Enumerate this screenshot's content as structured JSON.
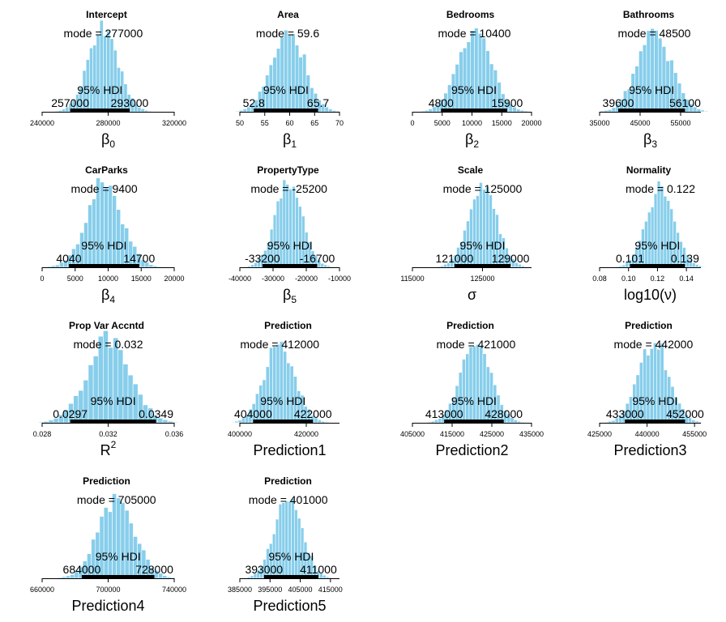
{
  "chart_data": [
    {
      "type": "bar",
      "title": "Intercept",
      "mode": 277000,
      "mode_label": "mode = 277000",
      "hdi_label": "95% HDI",
      "hdi_low": 257000,
      "hdi_high": 293000,
      "hdi_low_label": "257000",
      "hdi_high_label": "293000",
      "xlim": [
        240000,
        320000
      ],
      "ticks": [
        240000,
        280000,
        320000
      ],
      "tick_labels": [
        "240000",
        "280000",
        "320000"
      ],
      "xlabel": "β",
      "xlabel_sub": "0",
      "xlabel_sup": ""
    },
    {
      "type": "bar",
      "title": "Area",
      "mode": 59.6,
      "mode_label": "mode = 59.6",
      "hdi_label": "95% HDI",
      "hdi_low": 52.8,
      "hdi_high": 65.7,
      "hdi_low_label": "52.8",
      "hdi_high_label": "65.7",
      "xlim": [
        50,
        70
      ],
      "ticks": [
        50,
        55,
        60,
        65,
        70
      ],
      "tick_labels": [
        "50",
        "55",
        "60",
        "65",
        "70"
      ],
      "xlabel": "β",
      "xlabel_sub": "1",
      "xlabel_sup": ""
    },
    {
      "type": "bar",
      "title": "Bedrooms",
      "mode": 10400,
      "mode_label": "mode = 10400",
      "hdi_label": "95% HDI",
      "hdi_low": 4800,
      "hdi_high": 15900,
      "hdi_low_label": "4800",
      "hdi_high_label": "15900",
      "xlim": [
        0,
        20000
      ],
      "ticks": [
        0,
        5000,
        10000,
        15000,
        20000
      ],
      "tick_labels": [
        "0",
        "5000",
        "10000",
        "15000",
        "20000"
      ],
      "xlabel": "β",
      "xlabel_sub": "2",
      "xlabel_sup": ""
    },
    {
      "type": "bar",
      "title": "Bathrooms",
      "mode": 48500,
      "mode_label": "mode = 48500",
      "hdi_label": "95% HDI",
      "hdi_low": 39600,
      "hdi_high": 56100,
      "hdi_low_label": "39600",
      "hdi_high_label": "56100",
      "xlim": [
        35000,
        60000
      ],
      "ticks": [
        35000,
        45000,
        55000
      ],
      "tick_labels": [
        "35000",
        "45000",
        "55000"
      ],
      "xlabel": "β",
      "xlabel_sub": "3",
      "xlabel_sup": ""
    },
    {
      "type": "bar",
      "title": "CarParks",
      "mode": 9400,
      "mode_label": "mode = 9400",
      "hdi_label": "95% HDI",
      "hdi_low": 4040,
      "hdi_high": 14700,
      "hdi_low_label": "4040",
      "hdi_high_label": "14700",
      "xlim": [
        0,
        20000
      ],
      "ticks": [
        0,
        5000,
        10000,
        15000,
        20000
      ],
      "tick_labels": [
        "0",
        "5000",
        "10000",
        "15000",
        "20000"
      ],
      "xlabel": "β",
      "xlabel_sub": "4",
      "xlabel_sup": ""
    },
    {
      "type": "bar",
      "title": "PropertyType",
      "mode": -25200,
      "mode_label": "mode = -25200",
      "hdi_label": "95% HDI",
      "hdi_low": -33200,
      "hdi_high": -16700,
      "hdi_low_label": "-33200",
      "hdi_high_label": "-16700",
      "xlim": [
        -40000,
        -10000
      ],
      "ticks": [
        -40000,
        -30000,
        -20000,
        -10000
      ],
      "tick_labels": [
        "-40000",
        "-30000",
        "-20000",
        "-10000"
      ],
      "xlabel": "β",
      "xlabel_sub": "5",
      "xlabel_sup": ""
    },
    {
      "type": "bar",
      "title": "Scale",
      "mode": 125000,
      "mode_label": "mode = 125000",
      "hdi_label": "95% HDI",
      "hdi_low": 121000,
      "hdi_high": 129000,
      "hdi_low_label": "121000",
      "hdi_high_label": "129000",
      "xlim": [
        115000,
        132000
      ],
      "ticks": [
        115000,
        125000
      ],
      "tick_labels": [
        "115000",
        "125000"
      ],
      "xlabel": "σ",
      "xlabel_sub": "",
      "xlabel_sup": ""
    },
    {
      "type": "bar",
      "title": "Normality",
      "mode": 0.122,
      "mode_label": "mode = 0.122",
      "hdi_label": "95% HDI",
      "hdi_low": 0.101,
      "hdi_high": 0.139,
      "hdi_low_label": "0.101",
      "hdi_high_label": "0.139",
      "xlim": [
        0.08,
        0.15
      ],
      "ticks": [
        0.08,
        0.1,
        0.12,
        0.14
      ],
      "tick_labels": [
        "0.08",
        "0.10",
        "0.12",
        "0.14"
      ],
      "xlabel": "log10(ν)",
      "xlabel_sub": "",
      "xlabel_sup": ""
    },
    {
      "type": "bar",
      "title": "Prop Var Accntd",
      "mode": 0.032,
      "mode_label": "mode = 0.032",
      "hdi_label": "95% HDI",
      "hdi_low": 0.0297,
      "hdi_high": 0.0349,
      "hdi_low_label": "0.0297",
      "hdi_high_label": "0.0349",
      "xlim": [
        0.028,
        0.036
      ],
      "ticks": [
        0.028,
        0.032,
        0.036
      ],
      "tick_labels": [
        "0.028",
        "0.032",
        "0.036"
      ],
      "xlabel": "R",
      "xlabel_sub": "",
      "xlabel_sup": "2"
    },
    {
      "type": "bar",
      "title": "Prediction",
      "mode": 412000,
      "mode_label": "mode = 412000",
      "hdi_label": "95% HDI",
      "hdi_low": 404000,
      "hdi_high": 422000,
      "hdi_low_label": "404000",
      "hdi_high_label": "422000",
      "xlim": [
        400000,
        430000
      ],
      "ticks": [
        400000,
        420000
      ],
      "tick_labels": [
        "400000",
        "420000"
      ],
      "xlabel": "Prediction1",
      "xlabel_sub": "",
      "xlabel_sup": ""
    },
    {
      "type": "bar",
      "title": "Prediction",
      "mode": 421000,
      "mode_label": "mode = 421000",
      "hdi_label": "95% HDI",
      "hdi_low": 413000,
      "hdi_high": 428000,
      "hdi_low_label": "413000",
      "hdi_high_label": "428000",
      "xlim": [
        405000,
        435000
      ],
      "ticks": [
        405000,
        415000,
        425000,
        435000
      ],
      "tick_labels": [
        "405000",
        "415000",
        "425000",
        "435000"
      ],
      "xlabel": "Prediction2",
      "xlabel_sub": "",
      "xlabel_sup": ""
    },
    {
      "type": "bar",
      "title": "Prediction",
      "mode": 442000,
      "mode_label": "mode = 442000",
      "hdi_label": "95% HDI",
      "hdi_low": 433000,
      "hdi_high": 452000,
      "hdi_low_label": "433000",
      "hdi_high_label": "452000",
      "xlim": [
        425000,
        457000
      ],
      "ticks": [
        425000,
        440000,
        455000
      ],
      "tick_labels": [
        "425000",
        "440000",
        "455000"
      ],
      "xlabel": "Prediction3",
      "xlabel_sub": "",
      "xlabel_sup": ""
    },
    {
      "type": "bar",
      "title": "Prediction",
      "mode": 705000,
      "mode_label": "mode = 705000",
      "hdi_label": "95% HDI",
      "hdi_low": 684000,
      "hdi_high": 728000,
      "hdi_low_label": "684000",
      "hdi_high_label": "728000",
      "xlim": [
        660000,
        740000
      ],
      "ticks": [
        660000,
        700000,
        740000
      ],
      "tick_labels": [
        "660000",
        "700000",
        "740000"
      ],
      "xlabel": "Prediction4",
      "xlabel_sub": "",
      "xlabel_sup": ""
    },
    {
      "type": "bar",
      "title": "Prediction",
      "mode": 401000,
      "mode_label": "mode = 401000",
      "hdi_label": "95% HDI",
      "hdi_low": 393000,
      "hdi_high": 411000,
      "hdi_low_label": "393000",
      "hdi_high_label": "411000",
      "xlim": [
        385000,
        418000
      ],
      "ticks": [
        385000,
        395000,
        405000,
        415000
      ],
      "tick_labels": [
        "385000",
        "395000",
        "405000",
        "415000"
      ],
      "xlabel": "Prediction5",
      "xlabel_sub": "",
      "xlabel_sup": ""
    }
  ],
  "colors": {
    "bar": "#87ceeb",
    "hdi": "#000000"
  }
}
